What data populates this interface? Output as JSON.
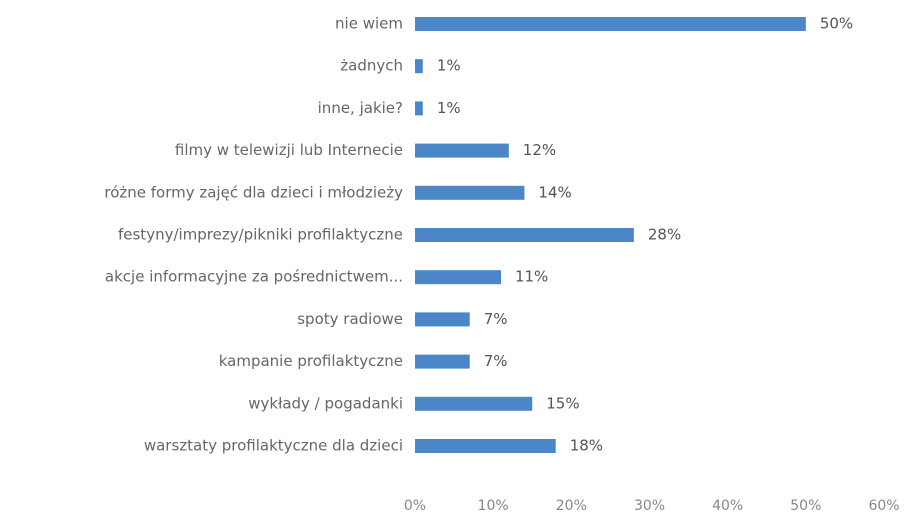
{
  "chart_data": {
    "type": "bar",
    "orientation": "horizontal",
    "title": "",
    "xlabel": "",
    "ylabel": "",
    "xlim": [
      0,
      60
    ],
    "grid": false,
    "legend": "none",
    "bar_color": "#4a86c8",
    "value_suffix": "%",
    "categories": [
      "nie wiem",
      "żadnych",
      "inne, jakie?",
      "filmy w telewizji lub Internecie",
      "różne formy zajęć dla dzieci i młodzieży",
      "festyny/imprezy/pikniki profilaktyczne",
      "akcje informacyjne za pośrednictwem...",
      "spoty radiowe",
      "kampanie profilaktyczne",
      "wykłady / pogadanki",
      "warsztaty profilaktyczne dla dzieci"
    ],
    "values": [
      50,
      1,
      1,
      12,
      14,
      28,
      11,
      7,
      7,
      15,
      18
    ],
    "value_labels": [
      "50%",
      "1%",
      "1%",
      "12%",
      "14%",
      "28%",
      "11%",
      "7%",
      "7%",
      "15%",
      "18%"
    ],
    "x_ticks": [
      0,
      10,
      20,
      30,
      40,
      50,
      60
    ],
    "x_tick_labels": [
      "0%",
      "10%",
      "20%",
      "30%",
      "40%",
      "50%",
      "60%"
    ]
  }
}
